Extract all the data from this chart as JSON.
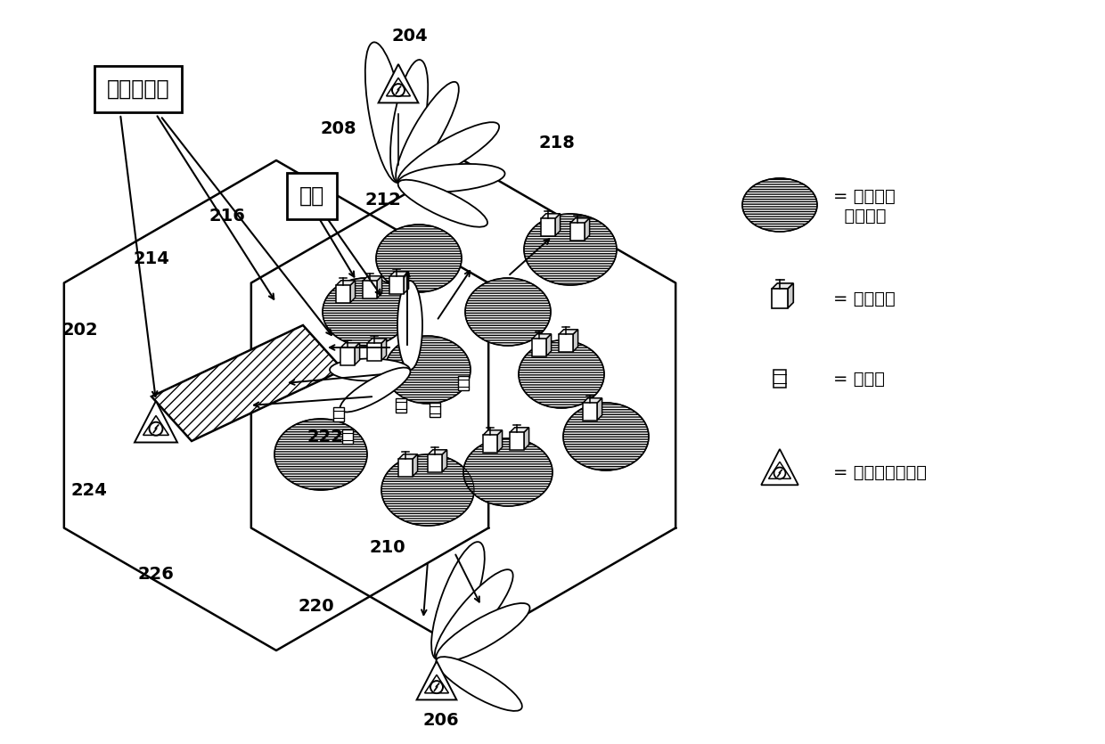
{
  "title": "",
  "bg_color": "#ffffff",
  "figure_width": 12.4,
  "figure_height": 8.35,
  "labels": {
    "time_ortho": "时间上正交",
    "interference": "干扰",
    "legend_relay_coverage": "= 中继节点\n  覆盖范围",
    "legend_relay_node": "= 中继节点",
    "legend_mobile_station": "= 移动站",
    "legend_base_station": "= 施主宏小区基站"
  },
  "numbers": {
    "n202": "202",
    "n204": "204",
    "n206": "206",
    "n208": "208",
    "n210": "210",
    "n212": "212",
    "n214": "214",
    "n216": "216",
    "n218": "218",
    "n220": "220",
    "n222": "222",
    "n224": "224",
    "n226": "226"
  }
}
